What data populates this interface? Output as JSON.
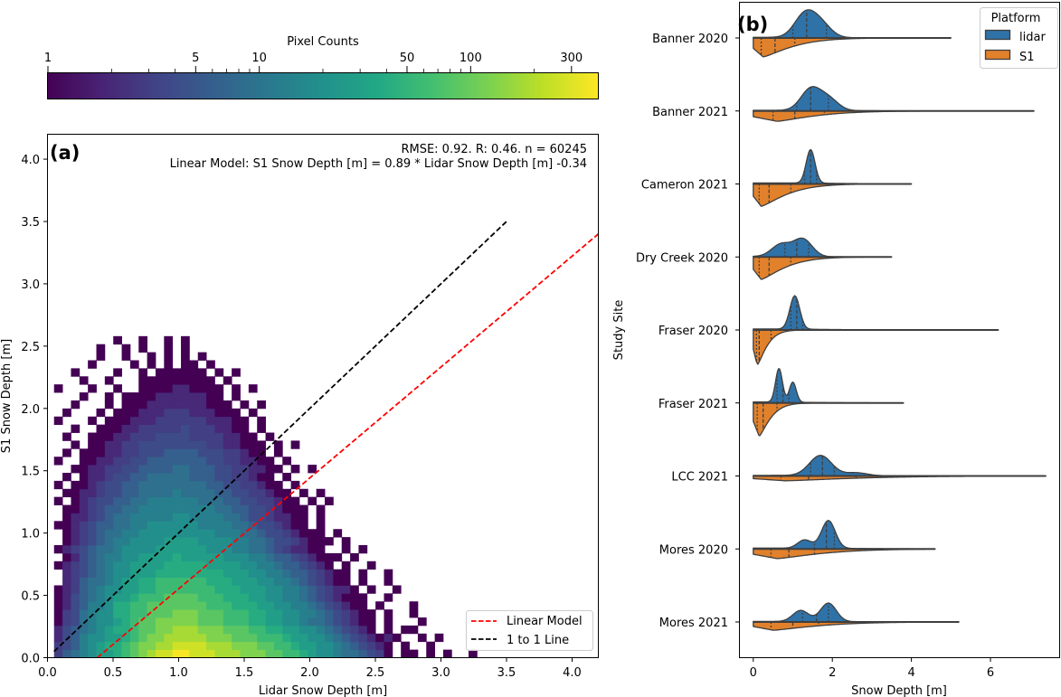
{
  "chart_data": [
    {
      "id": "colorbar",
      "type": "colorbar",
      "label": "Pixel Counts",
      "scale": "log",
      "range": [
        1,
        400
      ],
      "colormap": "viridis",
      "tick_labels": [
        "1",
        "5",
        "10",
        "50",
        "100",
        "300"
      ],
      "ticks": [
        1,
        5,
        10,
        50,
        100,
        300
      ],
      "minor_ticks": [
        2,
        3,
        4,
        6,
        7,
        8,
        9,
        20,
        30,
        40,
        60,
        70,
        80,
        90,
        200
      ]
    },
    {
      "id": "panel-a",
      "type": "heatmap",
      "panel_label": "(a)",
      "xlabel": "Lidar Snow Depth [m]",
      "ylabel": "S1 Snow Depth [m]",
      "xlim": [
        0.0,
        4.2
      ],
      "ylim": [
        0.0,
        4.2
      ],
      "xticks": [
        0.0,
        0.5,
        1.0,
        1.5,
        2.0,
        2.5,
        3.0,
        3.5,
        4.0
      ],
      "xtick_labels": [
        "0.0",
        "0.5",
        "1.0",
        "1.5",
        "2.0",
        "2.5",
        "3.0",
        "3.5",
        "4.0"
      ],
      "yticks": [
        0.0,
        0.5,
        1.0,
        1.5,
        2.0,
        2.5,
        3.0,
        3.5,
        4.0
      ],
      "ytick_labels": [
        "0.0",
        "0.5",
        "1.0",
        "1.5",
        "2.0",
        "2.5",
        "3.0",
        "3.5",
        "4.0"
      ],
      "annotation_stats": "RMSE: 0.92. R: 0.46. n = 60245",
      "annotation_model": "Linear Model: S1 Snow Depth [m] = 0.89 * Lidar Snow Depth [m] -0.34",
      "stats": {
        "rmse": 0.92,
        "r": 0.46,
        "n": 60245,
        "slope": 0.89,
        "intercept": -0.34
      },
      "bins": {
        "x_start": 0.05,
        "x_width": 0.0645,
        "y_start": 0.0,
        "y_width": 0.0645
      },
      "count_levels": [
        0,
        1,
        2,
        3,
        4,
        6,
        9,
        13,
        19,
        28,
        40,
        58,
        85,
        125,
        180,
        260,
        380
      ],
      "count_level_key": "0123456789abcdefg",
      "cells_note": "rows listed from y-bin 0 (bottom) upward; each character is an index into count_levels",
      "rows": [
        "3567899abcdeffggfffeeedddccbba98876654310110101001",
        "345789aabcddeeffffeeedddccbba9988765432101001000",
        "24578899abcddeeeeedddcccbbba99887654321210010100",
        "2456789aabccddeeedddcccbbaa998876543210101100",
        "13467889abccdddddcccbbbaa9988766543211010001",
        "1346788aabbcccdddcccbbbaa998877654321101001",
        "1245778aabbcccccccbbbaaa99887765432110100010",
        "124567899abbbccccbbbaaa998877654321110010",
        "1235678899aabbbbbbbaaa9998877654322101001",
        "0235667899aabbbbbbaaa99988776543211010010",
        "023456788999aaaaaaaa99988776554321101001",
        "1234567889999aaaaa999988776554321010010",
        "01245677889999a99999888776554321110100",
        "1234566788889999998887766543221100101",
        "012345677888899998888776654432111010",
        "0123456677888888888777665443211101",
        "1123455667788888877776654432110100",
        "012234566777778877776654432211010",
        "0112345566777777777665544321110100",
        "101234455667777776665544332110101",
        "011223445566667666655443321101010",
        "101123445566666666554433211010",
        "010122344556666655544332110100",
        "0011223344555566555443322110101",
        "1001122334455555554433221101",
        "0101112233444555544433211010",
        "00101122334444444433221110101",
        "010011122333444433332211010",
        "0010011122333334333221101",
        "1000101112223333332221101",
        "01000101112223332221110100",
        "0010001011122222221110101",
        "00010010111122222211010",
        "100010010011112211110101",
        "0001001000111111111010",
        "0010000100101111110101",
        "00001000010101011010",
        "0000010010010101010",
        "00000100101001010",
        "0000000100100101"
      ]
    },
    {
      "id": "panel-a-lines",
      "type": "line",
      "series": [
        {
          "name": "Linear Model",
          "color": "#ff0000",
          "style": "dashed",
          "x": [
            0.38,
            4.2
          ],
          "y": [
            0.0,
            3.4
          ]
        },
        {
          "name": "1 to 1 Line",
          "color": "#000000",
          "style": "dashed",
          "x": [
            0.05,
            3.5
          ],
          "y": [
            0.05,
            3.5
          ]
        }
      ],
      "legend": {
        "position": "bottom-right",
        "entries": [
          "Linear Model",
          "1 to 1 Line"
        ]
      }
    },
    {
      "id": "panel-b",
      "type": "violin",
      "panel_label": "(b)",
      "xlabel": "Snow Depth [m]",
      "ylabel": "Study Site",
      "xlim": [
        -0.35,
        7.75
      ],
      "xticks": [
        0,
        2,
        4,
        6
      ],
      "xtick_labels": [
        "0",
        "2",
        "4",
        "6"
      ],
      "categories": [
        "Banner 2020",
        "Banner 2021",
        "Cameron 2021",
        "Dry Creek 2020",
        "Fraser 2020",
        "Fraser 2021",
        "LCC 2021",
        "Mores 2020",
        "Mores 2021"
      ],
      "legend": {
        "title": "Platform",
        "position": "top-right",
        "entries": [
          {
            "label": "lidar",
            "color": "#2f72a8"
          },
          {
            "label": "S1",
            "color": "#e1812c"
          }
        ]
      },
      "series": [
        {
          "name": "lidar",
          "color": "#2f72a8",
          "side": "upper",
          "distributions": [
            {
              "site": "Banner 2020",
              "min": 0.0,
              "max": 5.0,
              "quartiles": [
                1.0,
                1.35,
                1.85
              ],
              "peaks": [
                [
                  1.3,
                  1.0
                ],
                [
                  1.7,
                  0.6
                ]
              ],
              "spread": 0.42,
              "max_height": 0.82
            },
            {
              "site": "Banner 2021",
              "min": 0.0,
              "max": 7.1,
              "quartiles": [
                1.1,
                1.45,
                1.9
              ],
              "peaks": [
                [
                  1.45,
                  1.0
                ],
                [
                  1.9,
                  0.55
                ]
              ],
              "spread": 0.4,
              "max_height": 0.71
            },
            {
              "site": "Cameron 2021",
              "min": 0.0,
              "max": 4.0,
              "quartiles": [
                1.3,
                1.45,
                1.6
              ],
              "peaks": [
                [
                  1.45,
                  1.0
                ]
              ],
              "spread": 0.18,
              "max_height": 1.0
            },
            {
              "site": "Dry Creek 2020",
              "min": 0.0,
              "max": 3.5,
              "quartiles": [
                0.8,
                1.1,
                1.4
              ],
              "peaks": [
                [
                  0.7,
                  0.65
                ],
                [
                  1.25,
                  0.95
                ]
              ],
              "spread": 0.38,
              "max_height": 0.55
            },
            {
              "site": "Fraser 2020",
              "min": 0.0,
              "max": 6.2,
              "quartiles": [
                0.95,
                1.1,
                1.25
              ],
              "peaks": [
                [
                  1.05,
                  1.0
                ]
              ],
              "spread": 0.2,
              "max_height": 1.0
            },
            {
              "site": "Fraser 2021",
              "min": 0.0,
              "max": 3.8,
              "quartiles": [
                0.6,
                0.75,
                0.9
              ],
              "peaks": [
                [
                  0.65,
                  1.0
                ],
                [
                  1.0,
                  0.6
                ]
              ],
              "spread": 0.14,
              "max_height": 1.0
            },
            {
              "site": "LCC 2021",
              "min": 0.0,
              "max": 7.4,
              "quartiles": [
                1.45,
                1.75,
                2.05
              ],
              "peaks": [
                [
                  1.7,
                  1.0
                ],
                [
                  2.6,
                  0.15
                ]
              ],
              "spread": 0.45,
              "max_height": 0.6
            },
            {
              "site": "Mores 2020",
              "min": 0.0,
              "max": 4.6,
              "quartiles": [
                1.55,
                1.85,
                2.05
              ],
              "peaks": [
                [
                  1.9,
                  1.0
                ],
                [
                  1.3,
                  0.3
                ]
              ],
              "spread": 0.28,
              "max_height": 0.83
            },
            {
              "site": "Mores 2021",
              "min": 0.0,
              "max": 5.2,
              "quartiles": [
                1.25,
                1.6,
                1.9
              ],
              "peaks": [
                [
                  1.9,
                  1.0
                ],
                [
                  1.2,
                  0.6
                ]
              ],
              "spread": 0.32,
              "max_height": 0.55
            }
          ]
        },
        {
          "name": "S1",
          "color": "#e1812c",
          "side": "lower",
          "distributions": [
            {
              "site": "Banner 2020",
              "min": 0.0,
              "max": 5.0,
              "quartiles": [
                0.2,
                0.55,
                1.05
              ],
              "mode": 0.25,
              "decay": 0.9,
              "max_height": 0.55
            },
            {
              "site": "Banner 2021",
              "min": 0.0,
              "max": 7.1,
              "quartiles": [
                0.5,
                1.05,
                1.8
              ],
              "mode": 0.6,
              "decay": 1.2,
              "max_height": 0.3
            },
            {
              "site": "Cameron 2021",
              "min": 0.0,
              "max": 4.0,
              "quartiles": [
                0.15,
                0.4,
                0.95
              ],
              "mode": 0.2,
              "decay": 0.8,
              "max_height": 0.65
            },
            {
              "site": "Dry Creek 2020",
              "min": 0.0,
              "max": 3.5,
              "quartiles": [
                0.15,
                0.4,
                0.95
              ],
              "mode": 0.2,
              "decay": 0.75,
              "max_height": 0.65
            },
            {
              "site": "Fraser 2020",
              "min": 0.0,
              "max": 6.2,
              "quartiles": [
                0.08,
                0.15,
                0.45
              ],
              "mode": 0.1,
              "decay": 0.3,
              "max_height": 1.0
            },
            {
              "site": "Fraser 2021",
              "min": 0.0,
              "max": 3.8,
              "quartiles": [
                0.1,
                0.25,
                0.6
              ],
              "mode": 0.15,
              "decay": 0.35,
              "max_height": 0.95
            },
            {
              "site": "LCC 2021",
              "min": 0.0,
              "max": 7.4,
              "quartiles": [
                0.7,
                1.4,
                2.6
              ],
              "mode": 0.8,
              "decay": 2.2,
              "max_height": 0.14
            },
            {
              "site": "Mores 2020",
              "min": 0.0,
              "max": 4.6,
              "quartiles": [
                0.45,
                0.9,
                1.55
              ],
              "mode": 0.6,
              "decay": 1.4,
              "max_height": 0.28
            },
            {
              "site": "Mores 2021",
              "min": 0.0,
              "max": 5.2,
              "quartiles": [
                0.45,
                1.0,
                1.65
              ],
              "mode": 0.5,
              "decay": 1.4,
              "max_height": 0.24
            }
          ]
        }
      ]
    }
  ]
}
